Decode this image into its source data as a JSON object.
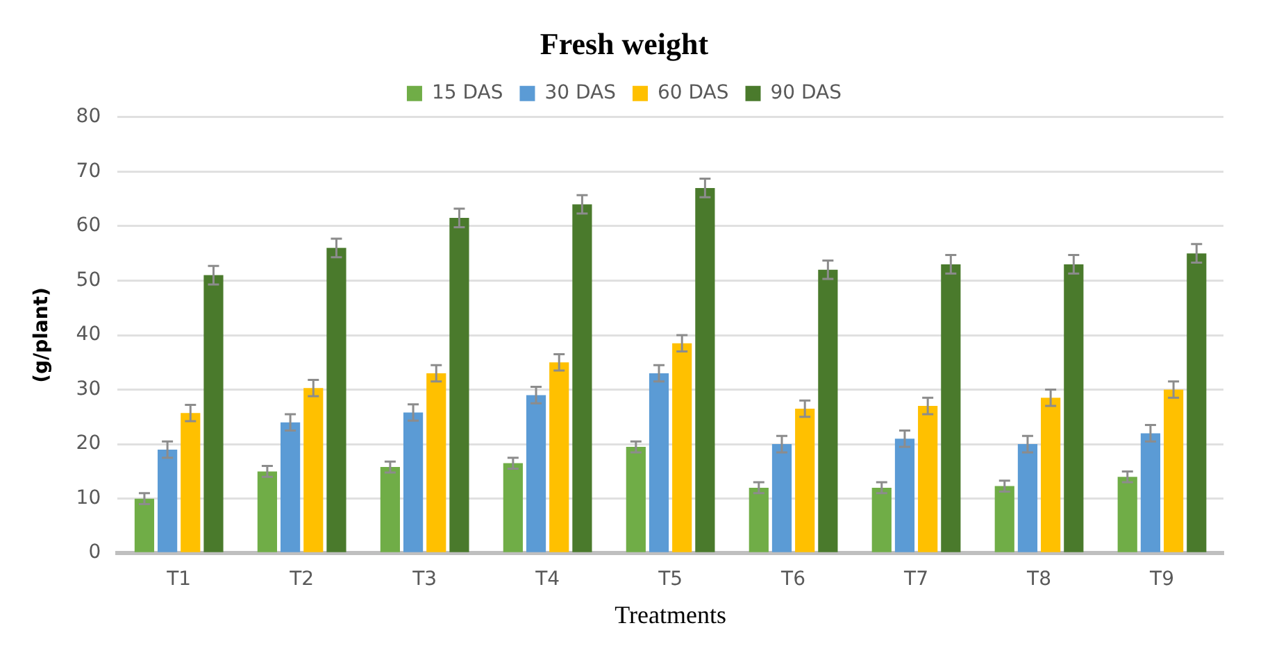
{
  "chart_data": {
    "type": "bar",
    "title": "Fresh weight",
    "xlabel": "Treatments",
    "ylabel": "(g/plant)",
    "categories": [
      "T1",
      "T2",
      "T3",
      "T4",
      "T5",
      "T6",
      "T7",
      "T8",
      "T9"
    ],
    "series": [
      {
        "name": "15 DAS",
        "color": "#70ad47",
        "values": [
          10,
          15,
          15.8,
          16.5,
          19.5,
          12,
          12,
          12.3,
          14
        ],
        "errors": [
          1,
          1,
          1,
          1,
          1,
          1,
          1,
          1,
          1
        ]
      },
      {
        "name": "30 DAS",
        "color": "#5b9bd5",
        "values": [
          19,
          24,
          25.8,
          29,
          33,
          20,
          21,
          20,
          22
        ],
        "errors": [
          1.5,
          1.5,
          1.5,
          1.5,
          1.5,
          1.5,
          1.5,
          1.5,
          1.5
        ]
      },
      {
        "name": "60 DAS",
        "color": "#ffc000",
        "values": [
          25.7,
          30.3,
          33,
          35,
          38.5,
          26.5,
          27,
          28.5,
          30
        ],
        "errors": [
          1.5,
          1.5,
          1.5,
          1.5,
          1.5,
          1.5,
          1.5,
          1.5,
          1.5
        ]
      },
      {
        "name": "90 DAS",
        "color": "#4a7a2c",
        "values": [
          51,
          56,
          61.5,
          64,
          67,
          52,
          53,
          53,
          55
        ],
        "errors": [
          1.7,
          1.7,
          1.7,
          1.7,
          1.7,
          1.7,
          1.7,
          1.7,
          1.7
        ]
      }
    ],
    "ylim": [
      0,
      80
    ],
    "yticks": [
      0,
      10,
      20,
      30,
      40,
      50,
      60,
      70,
      80
    ],
    "grid": "y",
    "legend": "top"
  }
}
